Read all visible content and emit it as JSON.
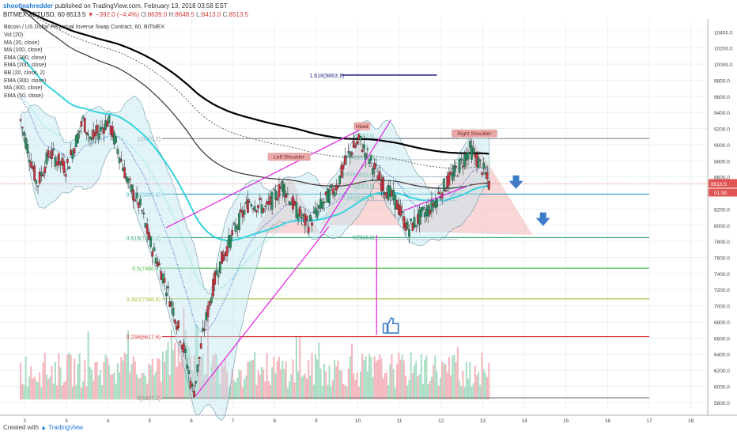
{
  "header": {
    "author": "shootinshredder",
    "published": "published on TradingView.com, February 13, 2018 03:58 EST"
  },
  "symbol_bar": {
    "symbol": "BITMEX:XBTUSD, 60",
    "last": "8513.5",
    "change": "▼ −392.0 (−4.4%)",
    "open_label": "O:",
    "open": "8639.0",
    "high_label": "H:",
    "high": "8648.5",
    "low_label": "L:",
    "low": "8413.0",
    "close_label": "C:",
    "close": "8513.5"
  },
  "chart_title": "Bitcoin / US Dollar Perpetual Inverse Swap Contract, 60, BITMEX",
  "indicators": [
    "Vol (20)",
    "MA (20, close)",
    "MA (100, close)",
    "EMA (380, close)",
    "EMA (200, close)",
    "BB (20, close, 2)",
    "EMA (300, close)",
    "MA (300, close)",
    "EMA (50, close)"
  ],
  "footer": {
    "created_with": "Created with",
    "brand": "TradingView"
  },
  "colors": {
    "up": "#53b987",
    "down": "#eb4d5c",
    "ema_black": "#000000",
    "cyan": "#35d2dc",
    "magenta": "#e020e0",
    "pattern_fill": "#f4b6b6",
    "arrow": "#3d7cc9",
    "fib_1": "#888888",
    "fib_786": "#26a1c0",
    "fib_618": "#2ea56d",
    "fib_5": "#4ec24e",
    "fib_382": "#a6c43c",
    "fib_236": "#d93a3a",
    "fib_0": "#888888",
    "fib_1618": "#2b2b8a"
  },
  "chart_data": {
    "type": "candlestick",
    "title": "Bitcoin / US Dollar Perpetual Inverse Swap Contract, 60, BITMEX",
    "x_ticks": [
      "2",
      "3",
      "4",
      "5",
      "6",
      "7",
      "8",
      "9",
      "10",
      "11",
      "12",
      "13",
      "14",
      "15",
      "16",
      "17",
      "18"
    ],
    "y_ticks": [
      "10400.0",
      "10200.0",
      "10000.0",
      "9800.0",
      "9600.0",
      "9400.0",
      "9200.0",
      "9000.0",
      "8800.0",
      "8600.0",
      "8200.0",
      "8000.0",
      "7800.0",
      "7600.0",
      "7400.0",
      "7200.0",
      "7000.0",
      "6800.0",
      "6600.0",
      "6400.0",
      "6200.0",
      "6000.0",
      "5800.0"
    ],
    "y_range": [
      5720,
      10560
    ],
    "x_range": [
      1.5,
      18.5
    ],
    "price_tag": {
      "value": 8513.5,
      "label": "8513.5",
      "countdown": "01:30"
    },
    "close_path": [
      [
        1.9,
        9300
      ],
      [
        2.3,
        8500
      ],
      [
        2.6,
        8900
      ],
      [
        3.0,
        8700
      ],
      [
        3.4,
        9300
      ],
      [
        3.6,
        9050
      ],
      [
        4.0,
        9300
      ],
      [
        4.2,
        9000
      ],
      [
        4.5,
        8500
      ],
      [
        4.8,
        8200
      ],
      [
        5.0,
        7800
      ],
      [
        5.3,
        7400
      ],
      [
        5.6,
        6900
      ],
      [
        5.85,
        6400
      ],
      [
        6.05,
        5900
      ],
      [
        6.3,
        6700
      ],
      [
        6.6,
        7400
      ],
      [
        7.0,
        7900
      ],
      [
        7.4,
        8300
      ],
      [
        7.8,
        8200
      ],
      [
        8.2,
        8500
      ],
      [
        8.5,
        8200
      ],
      [
        8.8,
        8000
      ],
      [
        9.2,
        8300
      ],
      [
        9.5,
        8500
      ],
      [
        9.8,
        8900
      ],
      [
        10.05,
        9050
      ],
      [
        10.3,
        8800
      ],
      [
        10.6,
        8500
      ],
      [
        10.9,
        8300
      ],
      [
        11.2,
        7950
      ],
      [
        11.5,
        8100
      ],
      [
        11.8,
        8250
      ],
      [
        12.1,
        8500
      ],
      [
        12.4,
        8700
      ],
      [
        12.7,
        8950
      ],
      [
        13.0,
        8700
      ],
      [
        13.15,
        8513
      ]
    ],
    "fib_levels": [
      {
        "ratio": "1",
        "label": "1(9075.7)",
        "price": 9075.7
      },
      {
        "ratio": "0.786",
        "label": "0.786(8385.9)",
        "price": 8385.9
      },
      {
        "ratio": "0.618",
        "label": "0.618(7846.2)",
        "price": 7846.2
      },
      {
        "ratio": "0.5",
        "label": "0.5(7466.4)",
        "price": 7466.4
      },
      {
        "ratio": "0.382",
        "label": "0.382(7086.6)",
        "price": 7086.6
      },
      {
        "ratio": "0.236",
        "label": "0.236(6617.6)",
        "price": 6617.6
      },
      {
        "ratio": "0",
        "label": "0(5857.2)",
        "price": 5857.2
      },
      {
        "ratio": "1.618",
        "label": "1.618(9863.1)",
        "price": 9863.1
      }
    ],
    "secondary_fib": [
      {
        "label": "1(9083.6)",
        "price": 9083.6
      },
      {
        "label": "0.786(8814.0)",
        "price": 8814
      },
      {
        "label": "0.618(8602.0)",
        "price": 8602
      },
      {
        "label": "0.5(8453.0)",
        "price": 8453
      },
      {
        "label": "0.382(8304.7)",
        "price": 8304.7
      },
      {
        "label": "0(7823.2)",
        "price": 7823.2
      }
    ],
    "pattern_labels": {
      "left_shoulder": "Left Shoulder",
      "head": "Head",
      "right_shoulder": "Right Shoulder"
    },
    "volume": "histogram at bottom (relative heights)"
  }
}
